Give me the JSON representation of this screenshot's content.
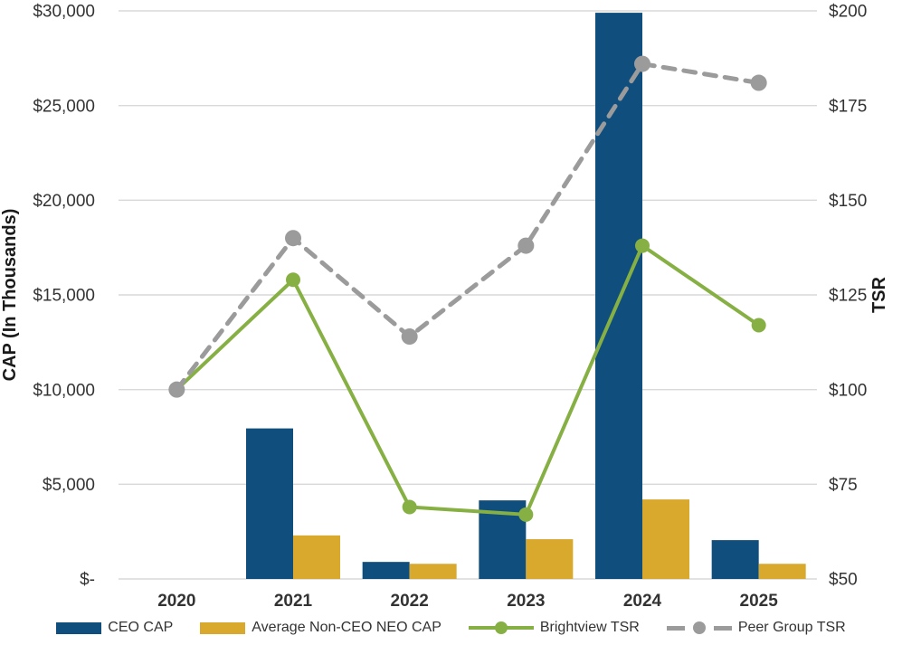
{
  "chart_data": {
    "type": "bar",
    "subtype": "combo-bar-line-dual-axis",
    "categories": [
      "2020",
      "2021",
      "2022",
      "2023",
      "2024",
      "2025"
    ],
    "bar_series": [
      {
        "name": "CEO CAP",
        "color": "#104E7E",
        "values": [
          null,
          7950,
          900,
          4150,
          29900,
          2050
        ]
      },
      {
        "name": "Average Non-CEO NEO CAP",
        "color": "#D9A92E",
        "values": [
          null,
          2300,
          800,
          2100,
          4200,
          800
        ]
      }
    ],
    "line_series": [
      {
        "name": "Brightview TSR",
        "color": "#86B043",
        "style": "solid",
        "marker_radius": 8,
        "stroke_width": 4,
        "values": [
          100,
          129,
          69,
          67,
          138,
          117
        ]
      },
      {
        "name": "Peer Group TSR",
        "color": "#9B9B9B",
        "style": "dashed",
        "marker_radius": 9,
        "stroke_width": 5,
        "values": [
          100,
          140,
          114,
          138,
          186,
          181
        ]
      }
    ],
    "left_axis": {
      "title": "CAP (In Thousands)",
      "min": 0,
      "max": 30000,
      "step": 5000,
      "tick_labels": [
        "$-",
        "$5,000",
        "$10,000",
        "$15,000",
        "$20,000",
        "$25,000",
        "$30,000"
      ]
    },
    "right_axis": {
      "title": "TSR",
      "min": 50,
      "max": 200,
      "step": 25,
      "tick_labels": [
        "$50",
        "$75",
        "$100",
        "$125",
        "$150",
        "$175",
        "$200"
      ]
    },
    "grid": true,
    "gridline_color": "#D9D9D9",
    "tick_label_color": "#333333",
    "category_label_color": "#333333",
    "legend_position": "bottom"
  },
  "legend": {
    "items": [
      {
        "label": "CEO CAP",
        "swatch": "bar",
        "color": "#104E7E"
      },
      {
        "label": "Average Non-CEO NEO CAP",
        "swatch": "bar",
        "color": "#D9A92E"
      },
      {
        "label": "Brightview TSR",
        "swatch": "line-solid",
        "color": "#86B043"
      },
      {
        "label": "Peer Group TSR",
        "swatch": "line-dashed",
        "color": "#9B9B9B"
      }
    ]
  }
}
